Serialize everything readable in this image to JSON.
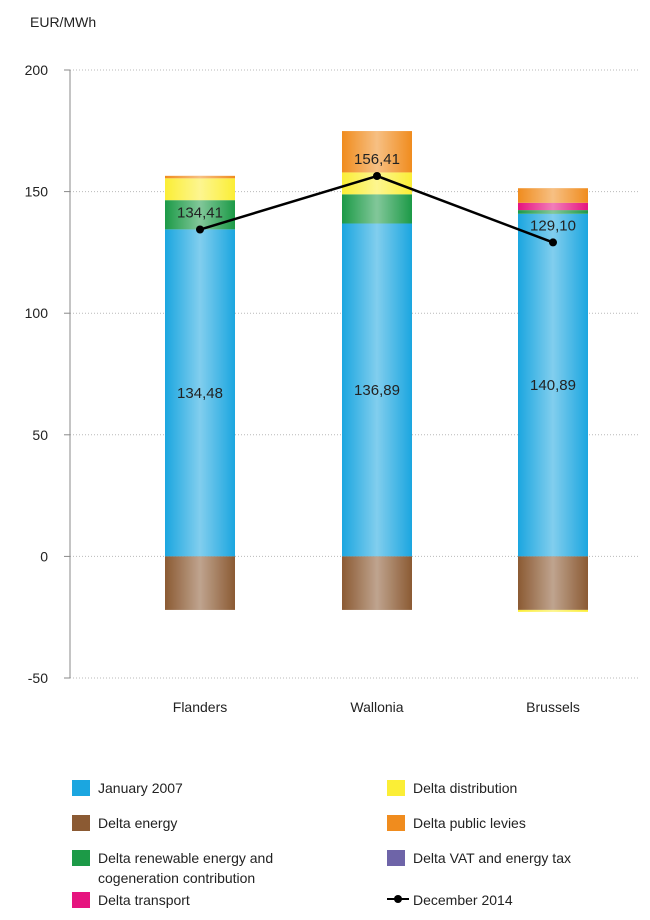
{
  "chart_data": {
    "type": "bar",
    "stacked": true,
    "unit_label": "EUR/MWh",
    "categories": [
      "Flanders",
      "Wallonia",
      "Brussels"
    ],
    "ylim": [
      -50,
      200
    ],
    "yticks": [
      -50,
      0,
      50,
      100,
      150,
      200
    ],
    "grid": true,
    "series": [
      {
        "name": "January  2007",
        "color": "#1ba6e0",
        "values": [
          134.48,
          136.89,
          140.89
        ],
        "labels": [
          "134,48",
          "136,89",
          "140,89"
        ]
      },
      {
        "name": "Delta energy",
        "color": "#8b5a33",
        "values": [
          -22,
          -22,
          -22
        ]
      },
      {
        "name": "Delta renewable energy and\ncogeneration contribution",
        "color": "#1c9a47",
        "values": [
          12,
          12,
          1.5
        ]
      },
      {
        "name": "Delta transport",
        "color": "#e6147f",
        "values": [
          0,
          0,
          3
        ]
      },
      {
        "name": "Delta distribution",
        "color": "#fbee36",
        "values": [
          9,
          9,
          -0.8
        ]
      },
      {
        "name": "Delta public levies",
        "color": "#f08c1e",
        "values": [
          1,
          17,
          6
        ]
      },
      {
        "name": "Delta VAT and energy tax",
        "color": "#6e64a8",
        "values": [
          0,
          0,
          0
        ]
      }
    ],
    "line_series": {
      "name": "December 2014",
      "color": "#000000",
      "values": [
        134.41,
        156.41,
        129.1
      ],
      "labels": [
        "134,41",
        "156,41",
        "129,10"
      ]
    },
    "legend": {
      "placement": "bottom",
      "items": [
        {
          "label": "January  2007",
          "color": "#1ba6e0",
          "kind": "box"
        },
        {
          "label": "Delta distribution",
          "color": "#fbee36",
          "kind": "box"
        },
        {
          "label": "Delta energy",
          "color": "#8b5a33",
          "kind": "box"
        },
        {
          "label": "Delta public levies",
          "color": "#f08c1e",
          "kind": "box"
        },
        {
          "label": "Delta renewable energy and\ncogeneration contribution",
          "color": "#1c9a47",
          "kind": "box"
        },
        {
          "label": "Delta VAT and energy tax",
          "color": "#6e64a8",
          "kind": "box"
        },
        {
          "label": "Delta transport",
          "color": "#e6147f",
          "kind": "box"
        },
        {
          "label": "December 2014",
          "color": "#000000",
          "kind": "line"
        }
      ]
    }
  }
}
